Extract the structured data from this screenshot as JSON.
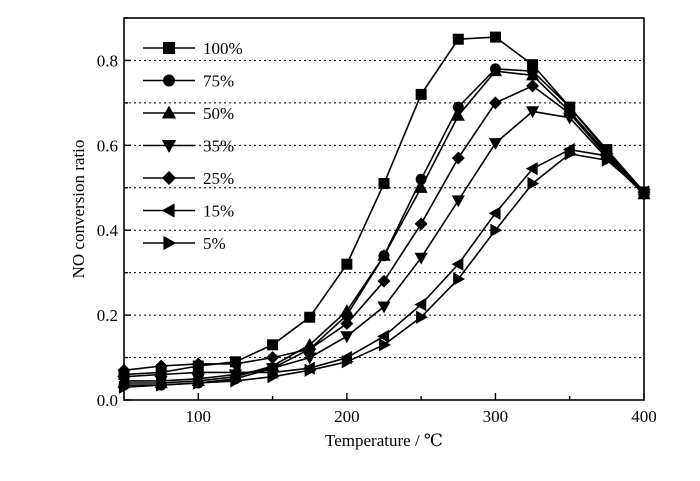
{
  "chart_data": {
    "type": "line",
    "xlabel": "Temperature / ℃",
    "ylabel": "NO conversion ratio",
    "xlim": [
      50,
      400
    ],
    "ylim": [
      0.0,
      0.9
    ],
    "x_ticks": [
      "100",
      "200",
      "300",
      "400"
    ],
    "y_ticks": [
      "0.0",
      "0.2",
      "0.4",
      "0.6",
      "0.8"
    ],
    "grid": "horizontal dotted every 0.1",
    "legend_position": "top-left",
    "x": [
      50,
      75,
      100,
      125,
      150,
      175,
      200,
      225,
      250,
      275,
      300,
      325,
      350,
      375,
      400
    ],
    "series": [
      {
        "name": "100%",
        "marker": "square",
        "values": [
          0.06,
          0.065,
          0.08,
          0.09,
          0.13,
          0.195,
          0.32,
          0.51,
          0.72,
          0.85,
          0.855,
          0.79,
          0.69,
          0.59,
          0.49
        ]
      },
      {
        "name": "75%",
        "marker": "circle",
        "values": [
          0.035,
          0.035,
          0.04,
          0.05,
          0.075,
          0.12,
          0.2,
          0.34,
          0.52,
          0.69,
          0.78,
          0.775,
          0.69,
          0.585,
          0.49
        ]
      },
      {
        "name": "50%",
        "marker": "triangle-up",
        "values": [
          0.04,
          0.04,
          0.045,
          0.055,
          0.08,
          0.13,
          0.21,
          0.34,
          0.5,
          0.67,
          0.775,
          0.765,
          0.68,
          0.58,
          0.485
        ]
      },
      {
        "name": "35%",
        "marker": "triangle-down",
        "values": [
          0.045,
          0.045,
          0.05,
          0.06,
          0.075,
          0.1,
          0.15,
          0.22,
          0.335,
          0.47,
          0.605,
          0.68,
          0.665,
          0.57,
          0.485
        ]
      },
      {
        "name": "25%",
        "marker": "diamond",
        "values": [
          0.07,
          0.08,
          0.085,
          0.085,
          0.1,
          0.12,
          0.18,
          0.28,
          0.415,
          0.57,
          0.7,
          0.74,
          0.675,
          0.575,
          0.485
        ]
      },
      {
        "name": "15%",
        "marker": "triangle-left",
        "values": [
          0.055,
          0.06,
          0.065,
          0.065,
          0.065,
          0.075,
          0.1,
          0.15,
          0.225,
          0.32,
          0.44,
          0.545,
          0.59,
          0.575,
          0.49
        ]
      },
      {
        "name": "5%",
        "marker": "triangle-right",
        "values": [
          0.03,
          0.035,
          0.04,
          0.045,
          0.055,
          0.07,
          0.09,
          0.13,
          0.195,
          0.285,
          0.4,
          0.51,
          0.58,
          0.565,
          0.49
        ]
      }
    ]
  }
}
